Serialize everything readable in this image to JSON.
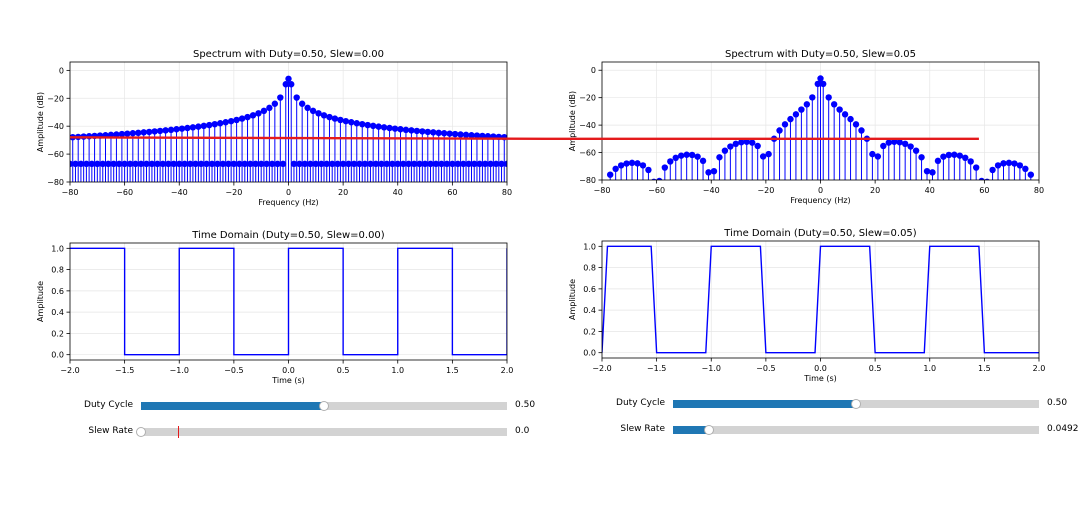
{
  "colors": {
    "stem": "#0000ff",
    "baseline": "#e41a1c",
    "grid": "#e6e6e6",
    "slider_fill": "#1f77b4",
    "slider_track": "#d3d3d3"
  },
  "chart_data": [
    {
      "type": "stem",
      "title": "Spectrum with Duty=0.50, Slew=0.00",
      "xlabel": "Frequency (Hz)",
      "ylabel": "Amplitude (dB)",
      "xlim": [
        -80,
        80
      ],
      "ylim": [
        -80,
        6
      ],
      "xticks": [
        -80,
        -60,
        -40,
        -20,
        0,
        20,
        40,
        60,
        80
      ],
      "yticks": [
        0,
        -20,
        -40,
        -60,
        -80
      ],
      "grid": true,
      "baseline_y": -48,
      "spectrum": {
        "duty": 0.5,
        "slew": 0.0,
        "period": 1.0,
        "f_step": 1,
        "f_max": 80
      },
      "series": [
        {
          "marker": "o"
        }
      ]
    },
    {
      "type": "stem",
      "title": "Spectrum with Duty=0.50, Slew=0.05",
      "xlabel": "Frequency (Hz)",
      "ylabel": "Amplitude (dB)",
      "xlim": [
        -80,
        80
      ],
      "ylim": [
        -80,
        6
      ],
      "xticks": [
        -80,
        -60,
        -40,
        -20,
        0,
        20,
        40,
        60,
        80
      ],
      "yticks": [
        0,
        -20,
        -40,
        -60,
        -80
      ],
      "grid": true,
      "baseline_y": -50,
      "spectrum": {
        "duty": 0.5,
        "slew": 0.05,
        "period": 1.0,
        "f_step": 1,
        "f_max": 80
      },
      "series": [
        {
          "marker": "o"
        }
      ]
    },
    {
      "type": "line",
      "title": "Time Domain (Duty=0.50, Slew=0.00)",
      "xlabel": "Time (s)",
      "ylabel": "Amplitude",
      "xlim": [
        -2.0,
        2.0
      ],
      "ylim": [
        -0.05,
        1.05
      ],
      "xticks": [
        -2.0,
        -1.5,
        -1.0,
        -0.5,
        0.0,
        0.5,
        1.0,
        1.5,
        2.0
      ],
      "yticks": [
        0.0,
        0.2,
        0.4,
        0.6,
        0.8,
        1.0
      ],
      "grid": true,
      "series": [
        {
          "x": [
            -2.0,
            -1.5,
            -1.5,
            -1.0,
            -1.0,
            -0.5,
            -0.5,
            0.0,
            0.0,
            0.5,
            0.5,
            1.0,
            1.0,
            1.5,
            1.5,
            2.0,
            2.0
          ],
          "y": [
            1,
            1,
            0,
            0,
            1,
            1,
            0,
            0,
            1,
            1,
            0,
            0,
            1,
            1,
            0,
            0,
            1
          ]
        }
      ]
    },
    {
      "type": "line",
      "title": "Time Domain (Duty=0.50, Slew=0.05)",
      "xlabel": "Time (s)",
      "ylabel": "Amplitude",
      "xlim": [
        -2.0,
        2.0
      ],
      "ylim": [
        -0.05,
        1.05
      ],
      "xticks": [
        -2.0,
        -1.5,
        -1.0,
        -0.5,
        0.0,
        0.5,
        1.0,
        1.5,
        2.0
      ],
      "yticks": [
        0.0,
        0.2,
        0.4,
        0.6,
        0.8,
        1.0
      ],
      "grid": true,
      "series": [
        {
          "x": [
            -2.0,
            -1.95,
            -1.55,
            -1.5,
            -1.05,
            -1.0,
            -0.55,
            -0.5,
            -0.05,
            0.0,
            0.45,
            0.5,
            0.95,
            1.0,
            1.45,
            1.5,
            2.0
          ],
          "y": [
            0,
            1,
            1,
            0,
            0,
            1,
            1,
            0,
            0,
            1,
            1,
            0,
            0,
            1,
            1,
            0,
            0
          ]
        }
      ]
    }
  ],
  "sliders": {
    "left": [
      {
        "label": "Duty Cycle",
        "value": 0.5,
        "min": 0.0,
        "max": 1.0,
        "display": "0.50",
        "valinit": null
      },
      {
        "label": "Slew Rate",
        "value": 0.0,
        "min": 0.0,
        "max": 0.1,
        "display": "0.0",
        "valinit": 0.01
      }
    ],
    "right": [
      {
        "label": "Duty Cycle",
        "value": 0.5,
        "min": 0.0,
        "max": 1.0,
        "display": "0.50",
        "valinit": null
      },
      {
        "label": "Slew Rate",
        "value": 0.0492,
        "min": 0.0,
        "max": 0.5,
        "display": "0.0492",
        "valinit": null
      }
    ]
  }
}
